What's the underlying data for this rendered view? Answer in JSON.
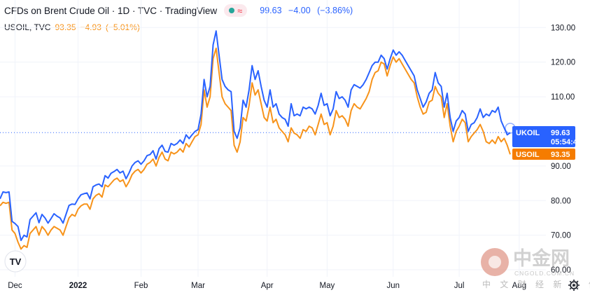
{
  "header": {
    "title": "CFDs on Brent Crude Oil · 1D · TVC · TradingView",
    "price": "99.63",
    "change": "−4.00",
    "change_pct": "(−3.86%)"
  },
  "secondary": {
    "symbol": "USOIL, TVC",
    "price": "93.35",
    "change": "−4.93",
    "change_pct": "(−5.01%)"
  },
  "badges": {
    "ukoil_label": "UKOIL",
    "ukoil_price": "99.63",
    "ukoil_countdown": "05:54:47",
    "usoil_label": "USOIL",
    "usoil_price": "93.35"
  },
  "logo": {
    "text": "TV"
  },
  "watermark": {
    "chinese": "中金网",
    "english": "CNGOLD.COM.CN",
    "sub": "中 文 财 经 新 媒 体"
  },
  "colors": {
    "ukoil": "#2962ff",
    "usoil": "#f7931a",
    "grid": "#f0f3fa",
    "axis_text": "#131722"
  },
  "chart_data": {
    "type": "line",
    "title": "CFDs on Brent Crude Oil · 1D · TVC · TradingView",
    "xlabel": "",
    "ylabel": "",
    "ylim": [
      59,
      133.5
    ],
    "y_ticks": [
      "60.00",
      "70.00",
      "80.00",
      "90.00",
      "110.00",
      "120.00",
      "130.00"
    ],
    "x_ticks": [
      {
        "label": "Dec",
        "index": 5,
        "bold": false
      },
      {
        "label": "2022",
        "index": 26,
        "bold": true
      },
      {
        "label": "Feb",
        "index": 47,
        "bold": false
      },
      {
        "label": "Mar",
        "index": 66,
        "bold": false
      },
      {
        "label": "Apr",
        "index": 89,
        "bold": false
      },
      {
        "label": "May",
        "index": 109,
        "bold": false
      },
      {
        "label": "Jun",
        "index": 131,
        "bold": false
      },
      {
        "label": "Jul",
        "index": 153,
        "bold": false
      },
      {
        "label": "Aug",
        "index": 173,
        "bold": false
      }
    ],
    "current_price_line": 99.63,
    "series": [
      {
        "name": "UKOIL",
        "values": [
          80.5,
          82.5,
          82.3,
          82.5,
          74.0,
          73.4,
          72.5,
          68.5,
          70.0,
          69.5,
          74.5,
          75.5,
          76.5,
          73.6,
          76.0,
          75.0,
          73.5,
          74.8,
          76.2,
          75.5,
          75.0,
          73.5,
          76.0,
          78.6,
          79.0,
          78.9,
          80.5,
          81.7,
          82.0,
          82.2,
          80.5,
          84.0,
          84.5,
          84.8,
          84.0,
          87.2,
          86.5,
          87.9,
          88.4,
          89.0,
          88.0,
          88.5,
          86.3,
          88.0,
          90.0,
          91.0,
          91.5,
          90.5,
          91.5,
          93.0,
          93.3,
          94.4,
          92.0,
          95.0,
          96.0,
          94.2,
          94.0,
          96.5,
          96.0,
          96.5,
          97.5,
          96.5,
          99.0,
          97.9,
          99.0,
          100.0,
          100.5,
          105.0,
          115.0,
          110.0,
          113.0,
          125.0,
          129.0,
          122.0,
          115.0,
          113.0,
          112.0,
          111.5,
          100.0,
          98.0,
          101.0,
          109.0,
          107.0,
          112.0,
          119.0,
          115.0,
          117.5,
          113.0,
          109.0,
          107.0,
          112.0,
          107.0,
          108.0,
          105.0,
          104.0,
          103.5,
          101.5,
          108.0,
          104.5,
          105.0,
          104.5,
          107.0,
          106.5,
          107.0,
          106.5,
          105.0,
          107.5,
          111.0,
          107.5,
          108.0,
          104.5,
          106.5,
          111.5,
          109.5,
          110.0,
          109.0,
          107.0,
          112.0,
          113.5,
          113.0,
          112.5,
          113.5,
          115.0,
          117.0,
          119.0,
          120.0,
          120.0,
          122.0,
          121.0,
          118.0,
          121.0,
          123.5,
          122.0,
          123.0,
          122.0,
          120.5,
          119.0,
          117.5,
          116.0,
          112.0,
          109.5,
          107.0,
          108.5,
          111.0,
          112.0,
          117.0,
          114.0,
          113.0,
          107.0,
          111.0,
          104.0,
          100.0,
          103.0,
          104.0,
          106.0,
          105.0,
          100.0,
          102.0,
          102.5,
          104.0,
          106.5,
          104.0,
          105.0,
          104.5,
          106.0,
          105.5,
          107.0,
          103.0,
          101.0,
          99.0,
          99.63
        ]
      },
      {
        "name": "USOIL",
        "values": [
          78.5,
          79.5,
          79.2,
          79.5,
          71.5,
          70.5,
          68.0,
          66.0,
          67.0,
          66.5,
          70.5,
          71.5,
          72.5,
          70.0,
          72.5,
          71.5,
          70.0,
          71.5,
          72.5,
          72.0,
          71.5,
          70.0,
          72.5,
          75.0,
          76.0,
          75.5,
          77.5,
          78.5,
          79.0,
          79.0,
          77.5,
          80.5,
          81.5,
          82.0,
          81.0,
          84.5,
          84.0,
          85.0,
          86.0,
          86.5,
          85.5,
          86.0,
          84.0,
          85.5,
          87.5,
          88.5,
          89.0,
          88.0,
          89.0,
          90.5,
          91.0,
          92.0,
          90.0,
          92.5,
          94.0,
          92.0,
          91.5,
          94.0,
          93.5,
          94.0,
          95.0,
          94.0,
          96.5,
          95.5,
          97.0,
          98.5,
          99.0,
          102.0,
          112.0,
          107.0,
          110.0,
          121.0,
          124.0,
          117.0,
          110.0,
          108.0,
          107.0,
          106.0,
          96.0,
          94.0,
          97.0,
          104.0,
          103.0,
          107.5,
          114.0,
          110.5,
          112.0,
          108.0,
          104.0,
          103.0,
          107.0,
          102.5,
          103.5,
          101.0,
          100.0,
          99.0,
          97.0,
          101.0,
          99.5,
          99.0,
          98.0,
          100.5,
          100.0,
          101.5,
          101.0,
          99.0,
          102.0,
          105.0,
          102.0,
          102.5,
          99.0,
          101.5,
          106.0,
          104.0,
          104.5,
          103.5,
          101.5,
          106.0,
          108.0,
          107.0,
          106.5,
          108.0,
          109.5,
          111.5,
          115.0,
          117.0,
          117.5,
          120.0,
          119.5,
          116.0,
          119.0,
          121.5,
          120.0,
          121.0,
          119.5,
          118.0,
          116.5,
          115.0,
          114.0,
          110.0,
          107.0,
          105.0,
          105.5,
          108.5,
          109.0,
          113.0,
          111.0,
          110.0,
          104.0,
          108.0,
          101.5,
          97.0,
          100.0,
          101.5,
          103.5,
          102.5,
          97.0,
          98.5,
          99.5,
          100.5,
          102.0,
          100.0,
          97.0,
          96.5,
          97.5,
          96.5,
          98.5,
          97.0,
          98.0,
          96.0,
          93.35
        ]
      }
    ]
  }
}
